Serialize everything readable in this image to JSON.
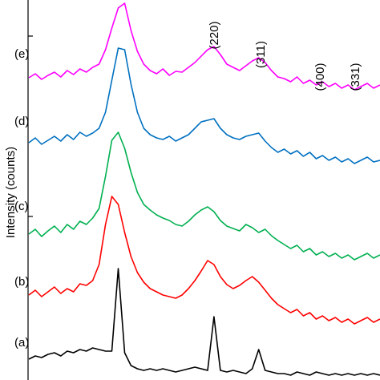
{
  "chart_data": {
    "type": "line",
    "y_label": "Intensity (counts)",
    "ylim": [
      0,
      474
    ],
    "annotations": [
      "(220)",
      "(311)",
      "(400)",
      "(331)"
    ],
    "series": [
      {
        "name": "(a)",
        "color": "#000000",
        "values": [
          26,
          30,
          28,
          32,
          34,
          30,
          36,
          34,
          38,
          36,
          40,
          38,
          36,
          36,
          139,
          34,
          18,
          14,
          12,
          14,
          12,
          14,
          12,
          10,
          12,
          14,
          16,
          14,
          12,
          79,
          12,
          10,
          12,
          10,
          8,
          14,
          38,
          12,
          10,
          8,
          8,
          6,
          10,
          8,
          6,
          10,
          8,
          6,
          8,
          6,
          8,
          6,
          8,
          6,
          8,
          6
        ]
      },
      {
        "name": "(b)",
        "color": "#ff0000",
        "values": [
          106,
          112,
          104,
          110,
          116,
          108,
          114,
          110,
          120,
          118,
          124,
          144,
          194,
          229,
          219,
          184,
          154,
          134,
          122,
          114,
          110,
          106,
          104,
          102,
          106,
          114,
          124,
          136,
          149,
          144,
          129,
          119,
          114,
          118,
          124,
          129,
          122,
          112,
          102,
          94,
          89,
          84,
          88,
          80,
          84,
          76,
          80,
          74,
          78,
          72,
          76,
          70,
          74,
          78,
          72,
          76
        ]
      },
      {
        "name": "(c)",
        "color": "#00b050",
        "values": [
          182,
          188,
          179,
          186,
          192,
          184,
          194,
          188,
          198,
          194,
          202,
          214,
          254,
          299,
          309,
          289,
          259,
          234,
          219,
          212,
          206,
          202,
          199,
          194,
          192,
          198,
          206,
          212,
          216,
          210,
          199,
          192,
          189,
          186,
          194,
          190,
          184,
          188,
          180,
          174,
          169,
          164,
          168,
          160,
          164,
          156,
          160,
          154,
          158,
          152,
          156,
          150,
          154,
          158,
          152,
          156
        ]
      },
      {
        "name": "(d)",
        "color": "#0070c0",
        "values": [
          296,
          302,
          294,
          299,
          304,
          298,
          306,
          300,
          309,
          304,
          308,
          314,
          334,
          374,
          414,
          412,
          369,
          334,
          314,
          306,
          302,
          300,
          304,
          298,
          302,
          306,
          314,
          322,
          324,
          326,
          314,
          306,
          302,
          300,
          304,
          306,
          308,
          298,
          290,
          284,
          288,
          282,
          286,
          279,
          284,
          276,
          280,
          274,
          278,
          272,
          276,
          270,
          274,
          278,
          272,
          274
        ]
      },
      {
        "name": "(e)",
        "color": "#ff00ff",
        "values": [
          377,
          382,
          375,
          380,
          384,
          378,
          386,
          381,
          388,
          384,
          390,
          394,
          412,
          439,
          464,
          470,
          436,
          410,
          394,
          386,
          382,
          388,
          380,
          385,
          384,
          390,
          396,
          404,
          412,
          416,
          406,
          394,
          390,
          386,
          392,
          398,
          402,
          396,
          386,
          378,
          376,
          372,
          378,
          370,
          374,
          368,
          372,
          366,
          370,
          364,
          368,
          362,
          366,
          370,
          364,
          368
        ]
      }
    ]
  }
}
